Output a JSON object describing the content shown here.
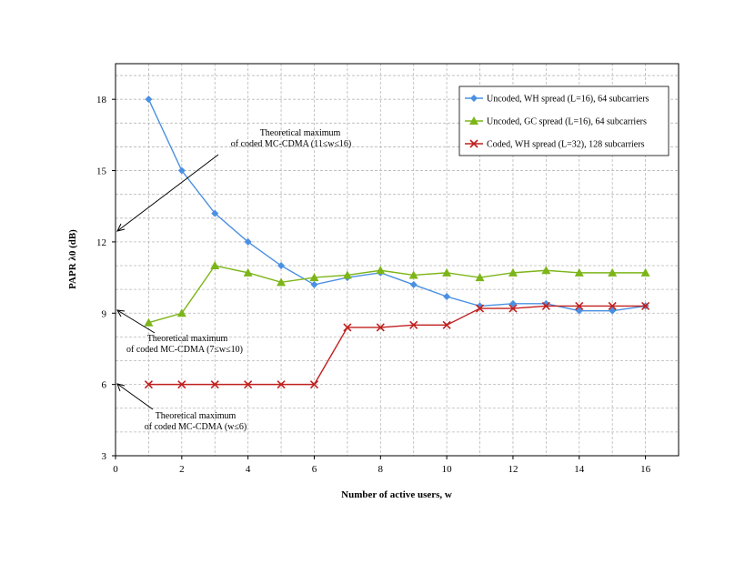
{
  "chart_data": {
    "type": "line",
    "xlabel": "Number of active users, w",
    "ylabel": "PAPR λ0 (dB)",
    "xlim": [
      0,
      17
    ],
    "ylim": [
      3,
      19.5
    ],
    "x_ticks": [
      "0",
      "2",
      "4",
      "6",
      "8",
      "10",
      "12",
      "14",
      "16"
    ],
    "y_ticks": [
      "3",
      "6",
      "9",
      "12",
      "15",
      "18"
    ],
    "grid": true,
    "legend_position": "top-right",
    "x": [
      1,
      2,
      3,
      4,
      5,
      6,
      7,
      8,
      9,
      10,
      11,
      12,
      13,
      14,
      15,
      16
    ],
    "series": [
      {
        "name": "Uncoded, WH spread (L=16), 64 subcarriers",
        "color": "#4a90e2",
        "marker": "diamond",
        "values": [
          18.0,
          15.0,
          13.2,
          12.0,
          11.0,
          10.2,
          10.5,
          10.7,
          10.2,
          9.7,
          9.3,
          9.4,
          9.4,
          9.1,
          9.1,
          9.3
        ]
      },
      {
        "name": "Uncoded, GC spread (L=16), 64 subcarriers",
        "color": "#7cb518",
        "marker": "triangle",
        "values": [
          8.6,
          9.0,
          11.0,
          10.7,
          10.3,
          10.5,
          10.6,
          10.8,
          10.6,
          10.7,
          10.5,
          10.7,
          10.8,
          10.7,
          10.7,
          10.7
        ]
      },
      {
        "name": "Coded, WH spread (L=32), 128 subcarriers",
        "color": "#c0201e",
        "marker": "x",
        "values": [
          6.0,
          6.0,
          6.0,
          6.0,
          6.0,
          6.0,
          8.4,
          8.4,
          8.5,
          8.5,
          9.2,
          9.2,
          9.3,
          9.3,
          9.3,
          9.3
        ]
      }
    ],
    "annotations": [
      {
        "id": "a1",
        "line1": "Theoretical maximum",
        "line2": "of coded MC-CDMA (11≤w≤16)",
        "points_to_y": 12
      },
      {
        "id": "a2",
        "line1": "Theoretical maximum",
        "line2": "of coded MC-CDMA (7≤w≤10)",
        "points_to_y": 9
      },
      {
        "id": "a3",
        "line1": "Theoretical maximum",
        "line2": "of coded MC-CDMA (w≤6)",
        "points_to_y": 6
      }
    ]
  }
}
